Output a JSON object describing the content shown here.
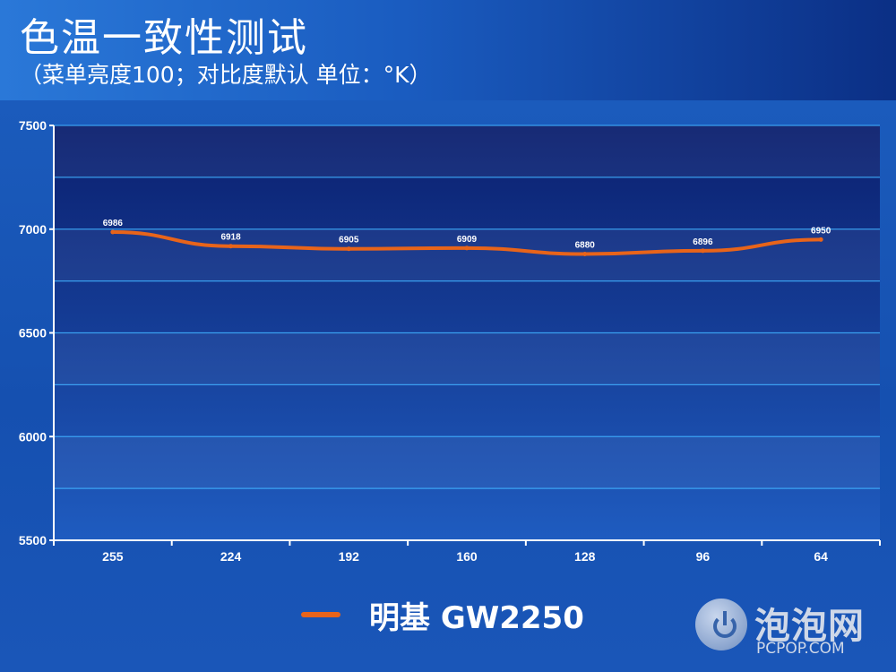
{
  "header": {
    "title": "色温一致性测试",
    "subtitle": "（菜单亮度100；对比度默认 单位：°K）"
  },
  "legend": {
    "series_name": "明基 GW2250"
  },
  "watermark": {
    "name_cn": "泡泡网",
    "name_en": "PCPOP.COM"
  },
  "colors": {
    "line": "#e8641a",
    "plot_bg_top": "#0b1f6e",
    "plot_bg_bottom": "#1f5cc0",
    "grid": "#3fb0ff"
  },
  "chart_data": {
    "type": "line",
    "title": "色温一致性测试",
    "subtitle": "（菜单亮度100；对比度默认 单位：°K）",
    "categories": [
      "255",
      "224",
      "192",
      "160",
      "128",
      "96",
      "64"
    ],
    "series": [
      {
        "name": "明基 GW2250",
        "values": [
          6986,
          6918,
          6905,
          6909,
          6880,
          6896,
          6950
        ]
      }
    ],
    "ylim": [
      5500,
      7500
    ],
    "yticks": [
      5500,
      6000,
      6500,
      7000,
      7500
    ],
    "grid": true,
    "legend_position": "bottom"
  }
}
